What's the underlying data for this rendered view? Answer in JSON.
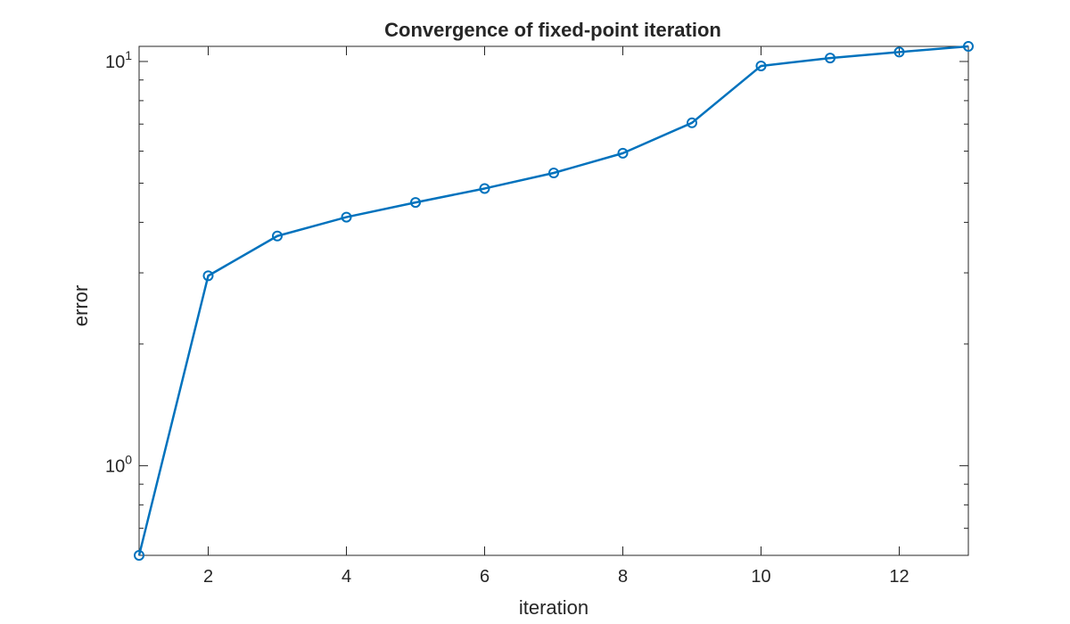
{
  "chart_data": {
    "type": "line",
    "title": "Convergence of fixed-point iteration",
    "xlabel": "iteration",
    "ylabel": "error",
    "x": [
      1,
      2,
      3,
      4,
      5,
      6,
      7,
      8,
      9,
      10,
      11,
      12,
      13
    ],
    "series": [
      {
        "values": [
          0.6,
          2.95,
          3.7,
          4.12,
          4.48,
          4.85,
          5.3,
          5.93,
          7.05,
          9.75,
          10.2,
          10.55,
          10.9
        ],
        "color": "#0072BD",
        "marker": "circle"
      }
    ],
    "xlim": [
      1,
      13
    ],
    "ylim": [
      0.6,
      10.9
    ],
    "yscale": "log",
    "xticks": [
      2,
      4,
      6,
      8,
      10,
      12
    ],
    "xtick_labels": [
      "2",
      "4",
      "6",
      "8",
      "10",
      "12"
    ],
    "yticks": [
      1,
      10
    ],
    "ytick_labels": [
      {
        "base": "10",
        "exp": "0"
      },
      {
        "base": "10",
        "exp": "1"
      }
    ],
    "grid": false
  }
}
